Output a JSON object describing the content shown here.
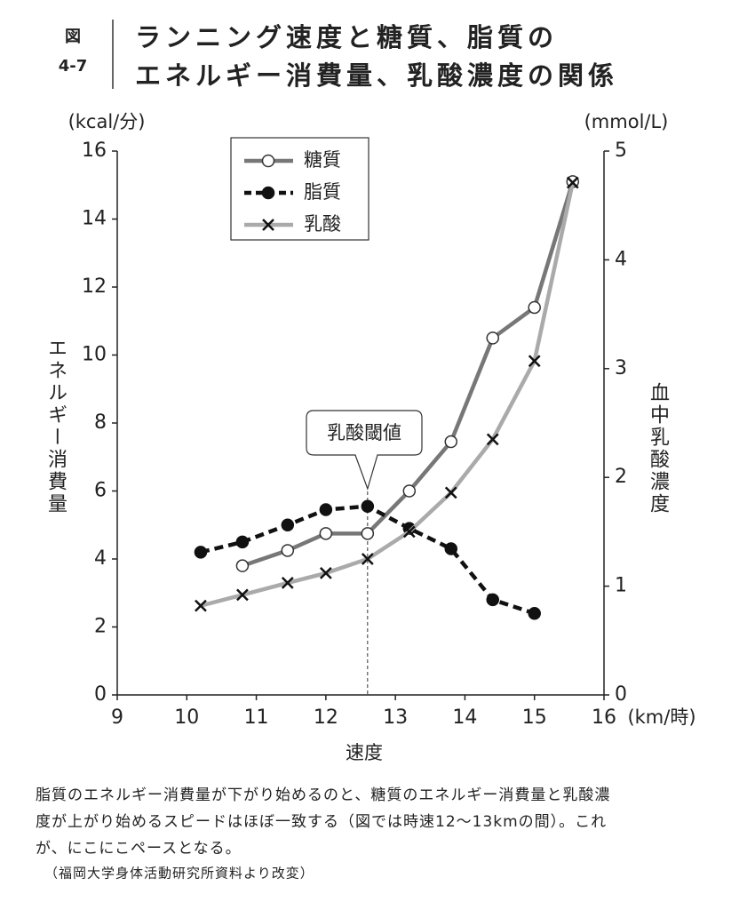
{
  "chart_data": {
    "type": "line",
    "figure_label": "図",
    "figure_number": "4-7",
    "title": [
      "ランニング速度と糖質、脂質の",
      "エネルギー消費量、乳酸濃度の関係"
    ],
    "y_unit": "(kcal/分)",
    "y2_unit": "(mmol/L)",
    "x_unit": "(km/時)",
    "ylabel": "エネルギー消費量",
    "y2label": "血中乳酸濃度",
    "xlabel": "速度",
    "x": [
      10.2,
      10.8,
      11.45,
      12.0,
      12.6,
      13.2,
      13.8,
      14.4,
      15.0,
      15.55
    ],
    "series": [
      {
        "name": "糖質",
        "color": "#777777",
        "marker": "open-circle",
        "values": [
          null,
          3.8,
          4.25,
          4.75,
          4.75,
          6.0,
          7.45,
          10.5,
          11.4,
          15.1
        ]
      },
      {
        "name": "脂質",
        "color": "#111111",
        "dashed": true,
        "marker": "filled-circle",
        "values": [
          4.2,
          4.5,
          5.0,
          5.45,
          5.55,
          4.9,
          4.3,
          2.8,
          2.4,
          null
        ]
      },
      {
        "name": "乳酸",
        "color": "#aaaaaa",
        "marker": "cross",
        "axis": "y2",
        "values": [
          0.82,
          0.92,
          1.03,
          1.12,
          1.25,
          1.5,
          1.86,
          2.35,
          3.07,
          4.71
        ]
      }
    ],
    "xlim": [
      9,
      16
    ],
    "xticks": [
      9,
      10,
      11,
      12,
      13,
      14,
      15,
      16
    ],
    "ylim": [
      0,
      16
    ],
    "yticks": [
      0,
      2,
      4,
      6,
      8,
      10,
      12,
      14,
      16
    ],
    "y2lim": [
      0,
      5
    ],
    "y2ticks": [
      0,
      1,
      2,
      3,
      4,
      5
    ],
    "annotation": {
      "text": "乳酸閾値",
      "x": 12.6
    },
    "legend": "upper left",
    "grid": false
  },
  "caption": [
    "脂質のエネルギー消費量が下がり始めるのと、糖質のエネルギー消費量と乳酸濃",
    "度が上がり始めるスピードはほぼ一致する（図では時速12〜13kmの間）。これ",
    "が、にこにこペースとなる。"
  ],
  "source": "（福岡大学身体活動研究所資料より改変）"
}
